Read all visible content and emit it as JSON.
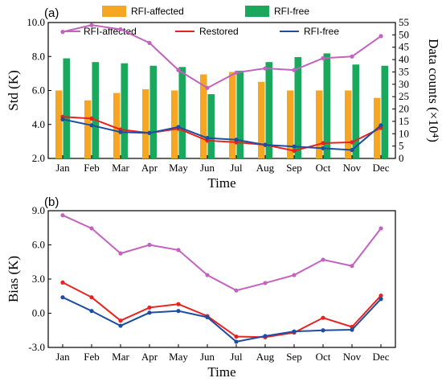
{
  "chart_data": [
    {
      "type": "bar+line",
      "panel_label": "(a)",
      "categories": [
        "Jan",
        "Feb",
        "Mar",
        "Apr",
        "May",
        "Jun",
        "Jul",
        "Aug",
        "Sep",
        "Oct",
        "Nov",
        "Dec"
      ],
      "xlabel": "Time",
      "ylabel": "Std (K)",
      "ylim": [
        2.0,
        10.0
      ],
      "yticks": [
        "2.0",
        "4.0",
        "6.0",
        "8.0",
        "10.0"
      ],
      "y2label": "Data counts (×10⁴)",
      "y2lim": [
        0,
        55
      ],
      "y2ticks": [
        "0",
        "5",
        "10",
        "15",
        "20",
        "25",
        "30",
        "35",
        "40",
        "45",
        "50",
        "55"
      ],
      "legend_placement": "top",
      "bar_series": [
        {
          "name": "RFI-affected",
          "color": "#f5a623",
          "values": [
            27.5,
            23.5,
            26.5,
            28,
            27.5,
            34,
            35,
            31,
            27.5,
            27.5,
            27.5,
            24.5
          ]
        },
        {
          "name": "RFI-free",
          "color": "#1aa85c",
          "values": [
            40.5,
            39,
            38.5,
            37.5,
            37,
            26,
            35.5,
            39,
            41,
            42.5,
            38,
            37.5
          ]
        }
      ],
      "line_series": [
        {
          "name": "RFI-affected",
          "color": "#c462c0",
          "values": [
            9.45,
            9.85,
            9.6,
            8.8,
            7.2,
            6.15,
            7.05,
            7.3,
            7.2,
            7.9,
            8.0,
            9.2
          ]
        },
        {
          "name": "Restored",
          "color": "#e8231f",
          "values": [
            4.45,
            4.35,
            3.7,
            3.5,
            3.75,
            3.05,
            2.95,
            2.8,
            2.45,
            2.9,
            2.95,
            3.8
          ]
        },
        {
          "name": "RFI-free",
          "color": "#1f4ea0",
          "values": [
            4.3,
            3.95,
            3.55,
            3.5,
            3.85,
            3.2,
            3.1,
            2.8,
            2.7,
            2.6,
            2.5,
            3.95
          ]
        }
      ]
    },
    {
      "type": "line",
      "panel_label": "(b)",
      "categories": [
        "Jan",
        "Feb",
        "Mar",
        "Apr",
        "May",
        "Jun",
        "Jul",
        "Aug",
        "Sep",
        "Oct",
        "Nov",
        "Dec"
      ],
      "xlabel": "Time",
      "ylabel": "Bias (K)",
      "ylim": [
        -3.0,
        9.0
      ],
      "yticks": [
        "-3.0",
        "0.0",
        "3.0",
        "6.0",
        "9.0"
      ],
      "series": [
        {
          "name": "RFI-affected",
          "color": "#c462c0",
          "values": [
            8.6,
            7.45,
            5.25,
            6.0,
            5.55,
            3.35,
            2.0,
            2.65,
            3.35,
            4.7,
            4.15,
            7.45
          ]
        },
        {
          "name": "Restored",
          "color": "#e8231f",
          "values": [
            2.7,
            1.4,
            -0.65,
            0.5,
            0.8,
            -0.25,
            -2.05,
            -2.1,
            -1.7,
            -0.4,
            -1.2,
            1.55
          ]
        },
        {
          "name": "RFI-free",
          "color": "#1f4ea0",
          "values": [
            1.4,
            0.2,
            -1.1,
            0.05,
            0.2,
            -0.35,
            -2.5,
            -2.0,
            -1.6,
            -1.5,
            -1.45,
            1.25
          ]
        }
      ]
    }
  ]
}
